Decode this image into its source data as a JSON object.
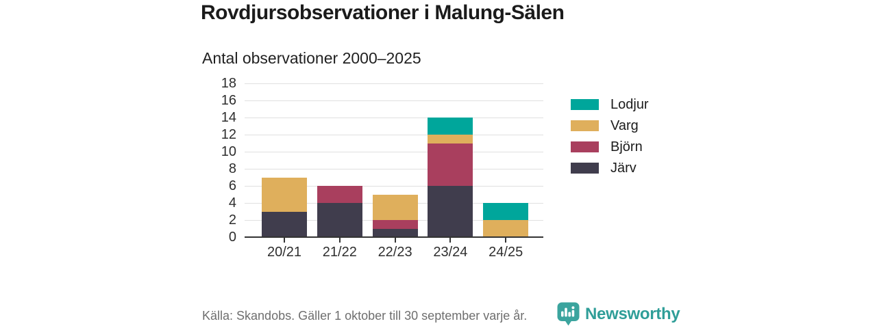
{
  "title": "Rovdjursobservationer i Malung-Sälen",
  "subtitle": "Antal observationer 2000–2025",
  "footer": {
    "source": "Källa: Skandobs. Gäller 1 oktober till 30 september varje år.",
    "brand": "Newsworthy"
  },
  "colors": {
    "accent_teal": "#00a69b",
    "gold": "#dfaf5c",
    "maroon": "#a93f5e",
    "dark_slate": "#403d4d",
    "brand_teal": "#2f9e98",
    "logo_teal": "#3ba49e",
    "grid": "#e0e0e0",
    "axis": "#333333",
    "muted_text": "#6e6e6e"
  },
  "chart_data": {
    "type": "bar",
    "stacked": true,
    "title": "Rovdjursobservationer i Malung-Sälen",
    "subtitle": "Antal observationer 2000–2025",
    "categories": [
      "20/21",
      "21/22",
      "22/23",
      "23/24",
      "24/25"
    ],
    "series": [
      {
        "name": "Järv",
        "color": "#403d4d",
        "values": [
          3,
          4,
          1,
          6,
          0
        ]
      },
      {
        "name": "Björn",
        "color": "#a93f5e",
        "values": [
          0,
          2,
          1,
          5,
          0
        ]
      },
      {
        "name": "Varg",
        "color": "#dfaf5c",
        "values": [
          4,
          0,
          3,
          1,
          2
        ]
      },
      {
        "name": "Lodjur",
        "color": "#00a69b",
        "values": [
          0,
          0,
          0,
          2,
          2
        ]
      }
    ],
    "totals": [
      7,
      6,
      5,
      14,
      4
    ],
    "legend_order": [
      "Lodjur",
      "Varg",
      "Björn",
      "Järv"
    ],
    "legend_position": "right",
    "ylim": [
      0,
      18
    ],
    "ytick_step": 2,
    "yticks": [
      0,
      2,
      4,
      6,
      8,
      10,
      12,
      14,
      16,
      18
    ],
    "grid": true,
    "xlabel": "",
    "ylabel": ""
  }
}
